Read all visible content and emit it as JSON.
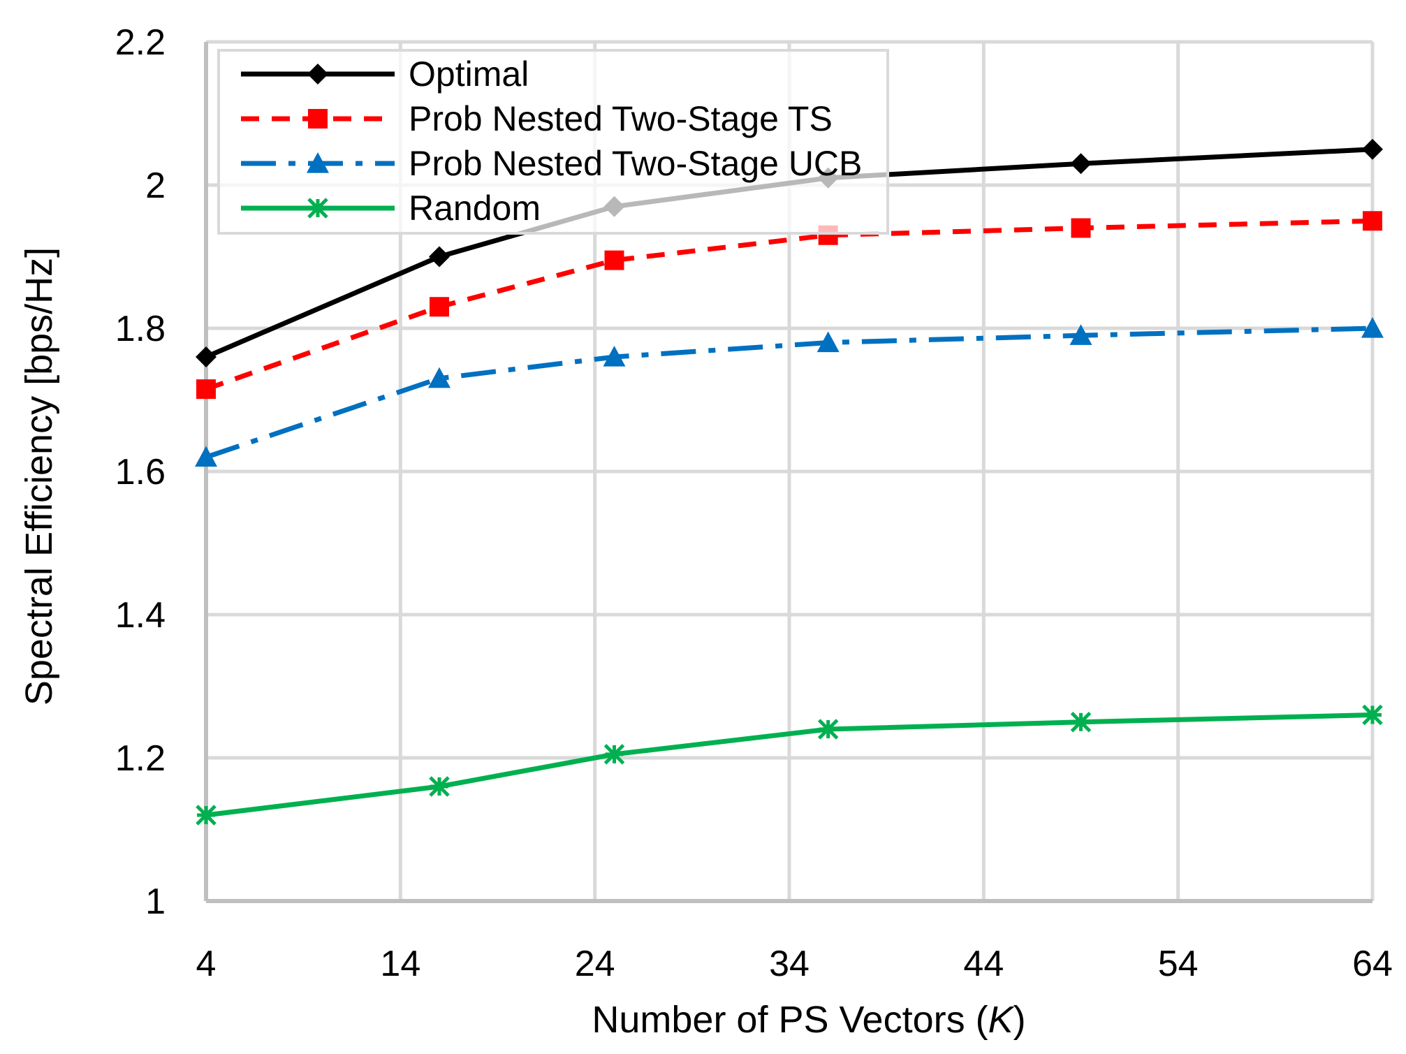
{
  "chart_data": {
    "type": "line",
    "title": "",
    "xlabel_text": "Number of PS Vectors (",
    "xlabel_var": "K",
    "xlabel_close": ")",
    "ylabel": "Spectral Efficiency [bps/Hz]",
    "xlim": [
      4,
      64
    ],
    "ylim": [
      1,
      2.2
    ],
    "x_ticks": [
      4,
      14,
      24,
      34,
      44,
      54,
      64
    ],
    "y_ticks": [
      1,
      1.2,
      1.4,
      1.6,
      1.8,
      2,
      2.2
    ],
    "y_tick_labels": [
      "1",
      "1.2",
      "1.4",
      "1.6",
      "1.8",
      "2",
      "2.2"
    ],
    "grid": true,
    "legend_position": "top-left",
    "x": [
      4,
      16,
      25,
      36,
      49,
      64
    ],
    "series": [
      {
        "name": "Optimal",
        "color": "#000000",
        "dash": "solid",
        "marker": "diamond",
        "values": [
          1.76,
          1.9,
          1.97,
          2.01,
          2.03,
          2.05
        ]
      },
      {
        "name": "Prob Nested Two-Stage TS",
        "color": "#ff0000",
        "dash": "dashed",
        "marker": "square",
        "values": [
          1.715,
          1.83,
          1.895,
          1.93,
          1.94,
          1.95
        ]
      },
      {
        "name": "Prob Nested Two-Stage UCB",
        "color": "#0070c0",
        "dash": "dashdot",
        "marker": "triangle",
        "values": [
          1.62,
          1.73,
          1.76,
          1.78,
          1.79,
          1.8
        ]
      },
      {
        "name": "Random",
        "color": "#00b050",
        "dash": "solid",
        "marker": "asterisk",
        "values": [
          1.12,
          1.16,
          1.205,
          1.24,
          1.25,
          1.26
        ]
      }
    ]
  }
}
